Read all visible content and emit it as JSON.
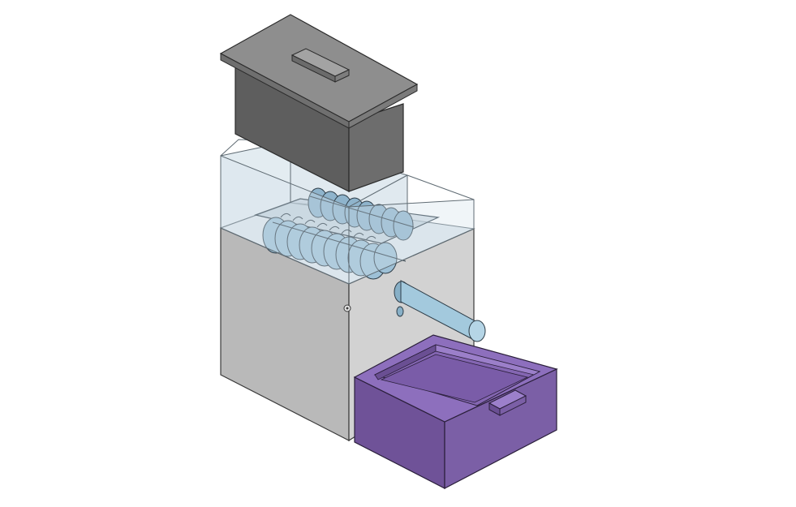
{
  "scene": {
    "description_visible_text": "",
    "colors": {
      "background": "#ffffff",
      "lid_top": "#8e8e8e",
      "lid_front": "#5e5e5e",
      "lid_side": "#6d6d6d",
      "lid_handle": "#7a7a7a",
      "glass": "#cfdde6",
      "glass_edge": "#5f6b73",
      "housing_front": "#c9c9c9",
      "housing_side": "#a6a6a6",
      "housing_edge": "#3a3a3a",
      "blades": "#8fb4cc",
      "blade_edge": "#2e3d48",
      "crank": "#9cc3d8",
      "bin_outer": "#7b5fa6",
      "bin_inner": "#8a6bb8",
      "bin_floor": "#7a5ca8",
      "bin_edge": "#2a1f3a"
    }
  }
}
